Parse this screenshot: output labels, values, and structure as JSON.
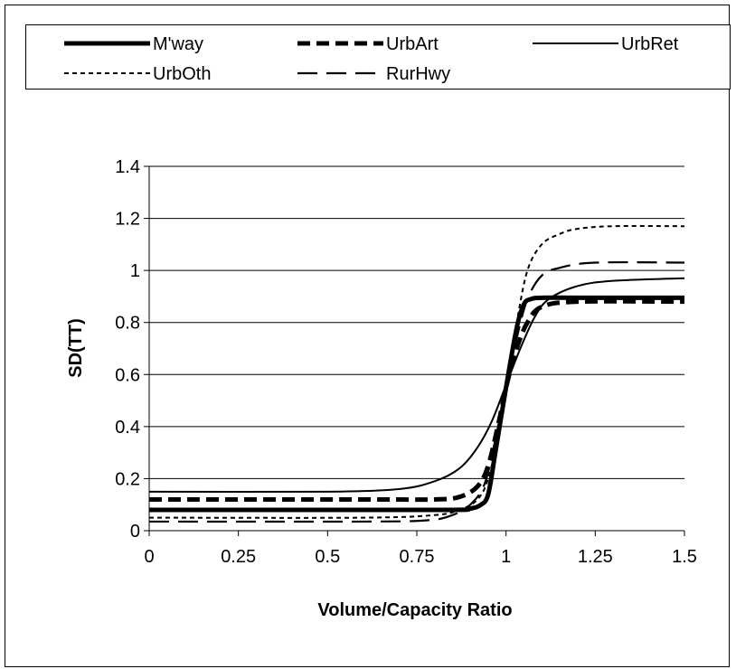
{
  "chart_data": {
    "type": "line",
    "title": "",
    "xlabel": "Volume/Capacity Ratio",
    "ylabel": "SD(TT)",
    "xlim": [
      0,
      1.5
    ],
    "ylim": [
      0,
      1.4
    ],
    "x_ticks": [
      "0",
      "0.25",
      "0.5",
      "0.75",
      "1",
      "1.25",
      "1.5"
    ],
    "y_ticks": [
      "0",
      "0.2",
      "0.4",
      "0.6",
      "0.8",
      "1",
      "1.2",
      "1.4"
    ],
    "grid": "horizontal",
    "legend_position": "top",
    "series": [
      {
        "name": "M'way",
        "style": "thick-solid",
        "x": [
          0,
          0.5,
          0.85,
          0.9,
          0.93,
          0.95,
          0.97,
          1.0,
          1.03,
          1.05,
          1.07,
          1.1,
          1.2,
          1.5
        ],
        "y": [
          0.08,
          0.08,
          0.08,
          0.085,
          0.1,
          0.14,
          0.3,
          0.55,
          0.78,
          0.87,
          0.89,
          0.895,
          0.895,
          0.895
        ]
      },
      {
        "name": "UrbArt",
        "style": "thick-dashed",
        "x": [
          0,
          0.6,
          0.8,
          0.87,
          0.92,
          0.95,
          0.98,
          1.0,
          1.03,
          1.06,
          1.1,
          1.2,
          1.5
        ],
        "y": [
          0.12,
          0.12,
          0.12,
          0.13,
          0.17,
          0.25,
          0.42,
          0.55,
          0.7,
          0.8,
          0.86,
          0.88,
          0.88
        ]
      },
      {
        "name": "UrbRet",
        "style": "thin-solid",
        "x": [
          0,
          0.5,
          0.7,
          0.8,
          0.87,
          0.92,
          0.96,
          1.0,
          1.04,
          1.08,
          1.12,
          1.2,
          1.3,
          1.5
        ],
        "y": [
          0.15,
          0.15,
          0.16,
          0.19,
          0.24,
          0.32,
          0.42,
          0.56,
          0.7,
          0.82,
          0.89,
          0.94,
          0.96,
          0.97
        ]
      },
      {
        "name": "UrbOth",
        "style": "thin-dotted",
        "x": [
          0,
          0.6,
          0.8,
          0.87,
          0.92,
          0.95,
          0.98,
          1.0,
          1.03,
          1.06,
          1.1,
          1.15,
          1.2,
          1.3,
          1.5
        ],
        "y": [
          0.05,
          0.05,
          0.06,
          0.08,
          0.12,
          0.2,
          0.38,
          0.55,
          0.8,
          1.0,
          1.1,
          1.14,
          1.16,
          1.17,
          1.17
        ]
      },
      {
        "name": "RurHwy",
        "style": "long-dashed",
        "x": [
          0,
          0.6,
          0.78,
          0.85,
          0.9,
          0.94,
          0.97,
          1.0,
          1.03,
          1.06,
          1.1,
          1.15,
          1.25,
          1.5
        ],
        "y": [
          0.035,
          0.035,
          0.04,
          0.06,
          0.1,
          0.18,
          0.35,
          0.55,
          0.74,
          0.89,
          0.98,
          1.01,
          1.03,
          1.03
        ]
      }
    ]
  }
}
